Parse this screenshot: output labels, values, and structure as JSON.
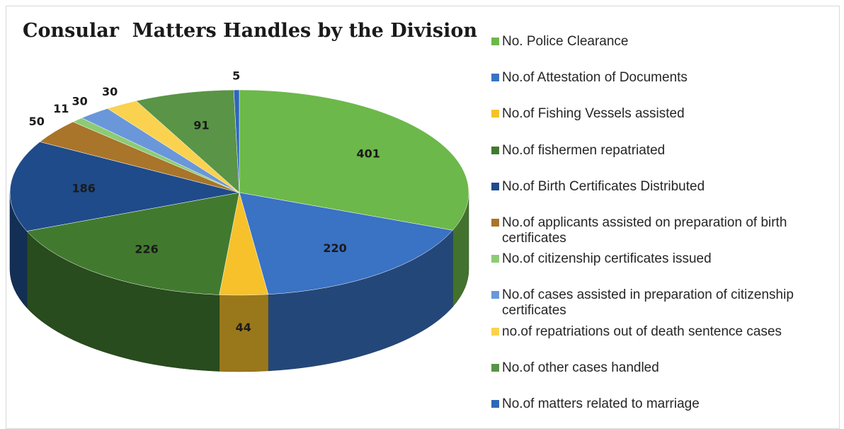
{
  "chart_data": {
    "type": "pie",
    "title": "Consular  Matters Handles by the Division",
    "legend_position": "right",
    "labels": [
      "No. Police Clearance",
      "No.of Attestation of Documents",
      "No.of Fishing Vessels assisted",
      "No.of fishermen repatriated",
      "No.of Birth Certificates Distributed",
      "No.of applicants assisted on preparation of birth certificates",
      "No.of citizenship certificates issued",
      "No.of cases assisted in preparation of citizenship certificates",
      "no.of repatriations out of death sentence cases",
      "No.of other cases handled",
      "No.of matters related to marriage"
    ],
    "values": [
      401,
      220,
      44,
      226,
      186,
      50,
      11,
      30,
      30,
      91,
      5
    ],
    "data_labels": [
      "401",
      "220",
      "44",
      "226",
      "186",
      "50",
      "11",
      "30",
      "30",
      "91",
      "5"
    ],
    "colors": [
      "#6cb84a",
      "#3a72c4",
      "#f6c12b",
      "#417a2f",
      "#1f4b8a",
      "#a8752a",
      "#8ccc74",
      "#6a97d9",
      "#fbd24f",
      "#5a9446",
      "#2e67b8"
    ]
  }
}
